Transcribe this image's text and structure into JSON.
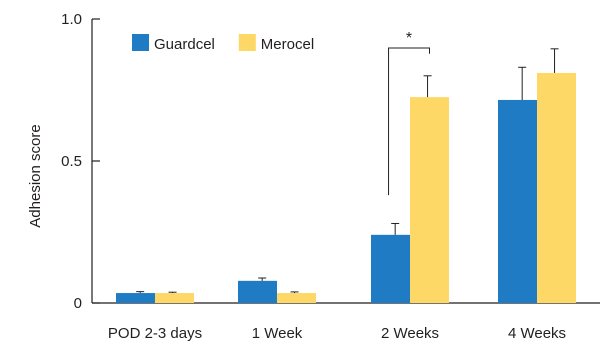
{
  "chart_data": {
    "type": "bar",
    "title": "",
    "xlabel": "",
    "ylabel": "Adhesion score",
    "ylim": [
      0,
      1.0
    ],
    "yticks": [
      0,
      0.5,
      1.0
    ],
    "ytick_labels": [
      "0",
      "0.5",
      "1.0"
    ],
    "grid": false,
    "legend_position": "top-left",
    "categories": [
      "POD 2-3 days",
      "1 Week",
      "2 Weeks",
      "4 Weeks"
    ],
    "series": [
      {
        "name": "Guardcel",
        "color": "#1e7bc4",
        "values": [
          0.035,
          0.078,
          0.24,
          0.715
        ],
        "errors": [
          0.005,
          0.01,
          0.04,
          0.115
        ]
      },
      {
        "name": "Merocel",
        "color": "#fdd866",
        "values": [
          0.035,
          0.035,
          0.725,
          0.81
        ],
        "errors": [
          0.003,
          0.004,
          0.075,
          0.085
        ]
      }
    ],
    "annotations": [
      {
        "text": "*",
        "category": "2 Weeks",
        "type": "significance-bracket"
      }
    ]
  }
}
